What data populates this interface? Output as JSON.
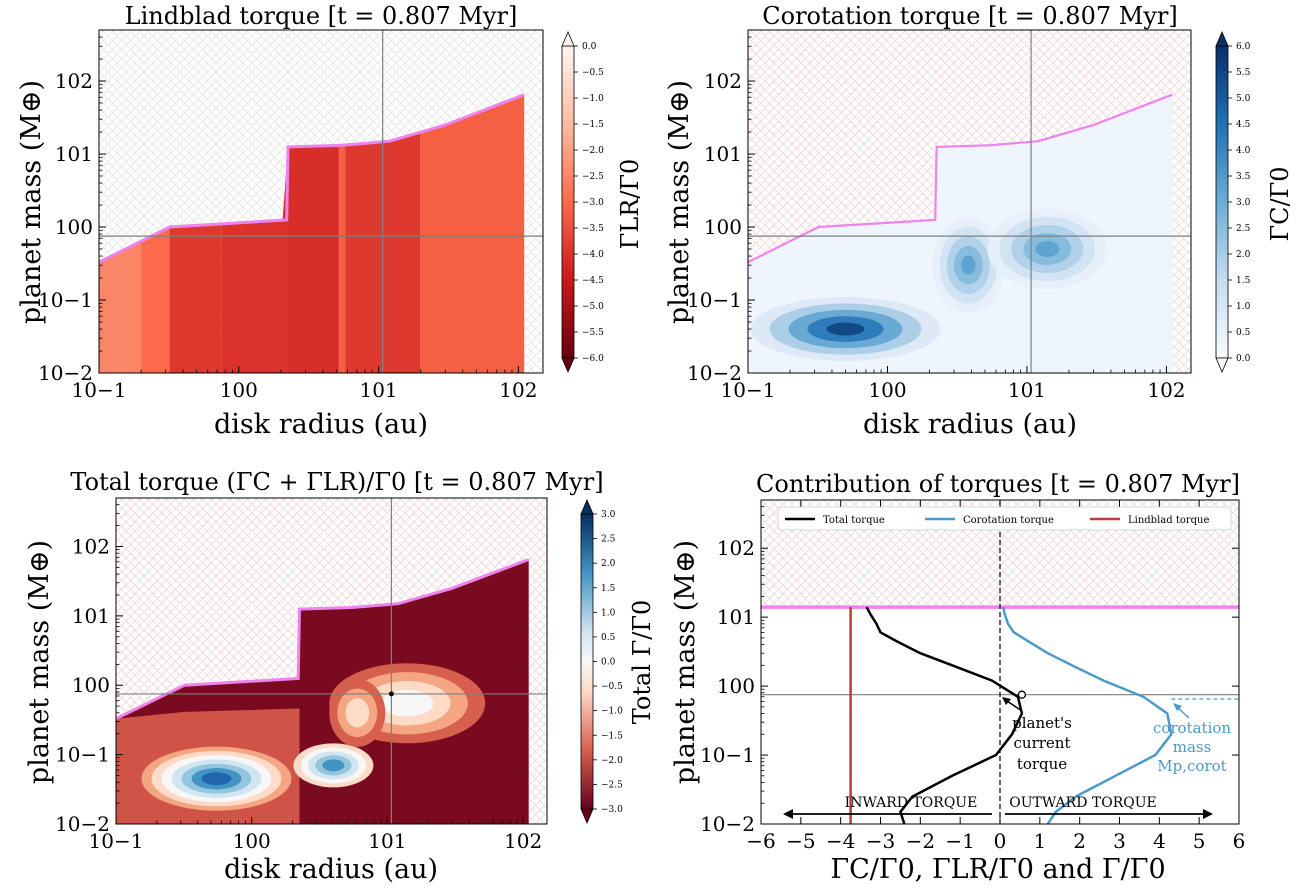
{
  "chart_data": [
    {
      "id": "lindblad",
      "type": "heatmap",
      "title": "Lindblad torque [t = 0.807 Myr]",
      "xlabel": "disk radius (au)",
      "ylabel": "planet mass (M⊕)",
      "xscale": "log",
      "yscale": "log",
      "xlim": [
        0.1,
        150
      ],
      "ylim": [
        0.01,
        500
      ],
      "xticks": [
        "10−1",
        "100",
        "101",
        "102"
      ],
      "yticks": [
        "10−2",
        "10−1",
        "100",
        "101",
        "102"
      ],
      "colorbar": {
        "label": "ΓLR/Γ0",
        "range": [
          -6.0,
          0.0
        ],
        "ticks": [
          "0.0",
          "−0.5",
          "−1.0",
          "−1.5",
          "−2.0",
          "−2.5",
          "−3.0",
          "−3.5",
          "−4.0",
          "−4.5",
          "−5.0",
          "−5.5",
          "−6.0"
        ],
        "colors": [
          "#67000d",
          "#cb181d",
          "#fb6a4a",
          "#fcbba1",
          "#fff5f0"
        ]
      },
      "mass_limit_curve": {
        "r": [
          0.1,
          0.32,
          2.2,
          2.25,
          5.5,
          12,
          30,
          110
        ],
        "m": [
          0.33,
          1.0,
          1.25,
          12.5,
          13.2,
          15,
          25,
          65
        ],
        "color": "#ee82ee"
      },
      "reference_lines": {
        "r": 10.7,
        "m": 0.75
      },
      "torque_bands": [
        {
          "r0": 0.1,
          "r1": 0.2,
          "value": -2.5
        },
        {
          "r0": 0.2,
          "r1": 0.32,
          "value": -3.0
        },
        {
          "r0": 0.32,
          "r1": 0.75,
          "value": -3.9
        },
        {
          "r0": 0.75,
          "r1": 2.25,
          "value": -4.0
        },
        {
          "r0": 2.25,
          "r1": 5.2,
          "value": -4.1
        },
        {
          "r0": 5.2,
          "r1": 5.8,
          "value": -3.2
        },
        {
          "r0": 5.8,
          "r1": 20,
          "value": -3.9
        },
        {
          "r0": 20,
          "r1": 110,
          "value": -3.2
        }
      ]
    },
    {
      "id": "corotation",
      "type": "heatmap",
      "title": "Corotation torque [t = 0.807 Myr]",
      "xlabel": "disk radius (au)",
      "ylabel": "planet mass (M⊕)",
      "xscale": "log",
      "yscale": "log",
      "xlim": [
        0.1,
        150
      ],
      "ylim": [
        0.01,
        500
      ],
      "xticks": [
        "10−1",
        "100",
        "101",
        "102"
      ],
      "yticks": [
        "10−2",
        "10−1",
        "100",
        "101",
        "102"
      ],
      "colorbar": {
        "label": "ΓC/Γ0",
        "range": [
          0.0,
          6.0
        ],
        "ticks": [
          "6.0",
          "5.5",
          "5.0",
          "4.5",
          "4.0",
          "3.5",
          "3.0",
          "2.5",
          "2.0",
          "1.5",
          "1.0",
          "0.5",
          "0.0"
        ],
        "colors": [
          "#f7fbff",
          "#c6dbef",
          "#6baed6",
          "#2171b5",
          "#08306b"
        ]
      },
      "mass_limit_curve": {
        "r": [
          0.1,
          0.32,
          2.2,
          2.25,
          5.5,
          12,
          30,
          110
        ],
        "m": [
          0.33,
          1.0,
          1.25,
          12.5,
          13.2,
          15,
          25,
          65
        ],
        "color": "#ee82ee"
      },
      "reference_lines": {
        "r": 10.7,
        "m": 0.75
      },
      "peaks": [
        {
          "r": 0.5,
          "m": 0.04,
          "value": 5.8
        },
        {
          "r": 3.8,
          "m": 0.3,
          "value": 3.5
        },
        {
          "r": 14,
          "m": 0.5,
          "value": 3.5
        }
      ]
    },
    {
      "id": "total",
      "type": "heatmap",
      "title": "Total torque (ΓC + ΓLR)/Γ0 [t = 0.807 Myr]",
      "xlabel": "disk radius (au)",
      "ylabel": "planet mass (M⊕)",
      "xscale": "log",
      "yscale": "log",
      "xlim": [
        0.1,
        150
      ],
      "ylim": [
        0.01,
        500
      ],
      "xticks": [
        "10−1",
        "100",
        "101",
        "102"
      ],
      "yticks": [
        "10−2",
        "10−1",
        "100",
        "101",
        "102"
      ],
      "colorbar": {
        "label": "Total Γ/Γ0",
        "range": [
          -3.0,
          3.0
        ],
        "ticks": [
          "3.0",
          "2.5",
          "2.0",
          "1.5",
          "1.0",
          "0.5",
          "0.0",
          "−0.5",
          "−1.0",
          "−1.5",
          "−2.0",
          "−2.5",
          "−3.0"
        ],
        "colors": [
          "#67001f",
          "#d6604d",
          "#fddbc7",
          "#f7f7f7",
          "#d1e5f0",
          "#4393c3",
          "#053061"
        ]
      },
      "mass_limit_curve": {
        "r": [
          0.1,
          0.32,
          2.2,
          2.25,
          5.5,
          12,
          30,
          110
        ],
        "m": [
          0.33,
          1.0,
          1.25,
          12.5,
          13.2,
          15,
          25,
          65
        ],
        "color": "#ee82ee"
      },
      "reference_lines": {
        "r": 10.7,
        "m": 0.75
      },
      "current_planet": {
        "r": 10.7,
        "m": 0.75
      }
    },
    {
      "id": "contribution",
      "type": "line",
      "title": "Contribution of torques [t = 0.807 Myr]",
      "xlabel": "ΓC/Γ0, ΓLR/Γ0 and Γ/Γ0",
      "ylabel": "planet mass (M⊕)",
      "yscale": "log",
      "xlim": [
        -6,
        6
      ],
      "ylim": [
        0.01,
        500
      ],
      "xticks": [
        -6,
        -5,
        -4,
        -3,
        -2,
        -1,
        0,
        1,
        2,
        3,
        4,
        5,
        6
      ],
      "xtick_labels": [
        "−6",
        "−5",
        "−4",
        "−3",
        "−2",
        "−1",
        "0",
        "1",
        "2",
        "3",
        "4",
        "5",
        "6"
      ],
      "yticks": [
        "10−2",
        "10−1",
        "100",
        "101",
        "102"
      ],
      "legend": {
        "position": "top",
        "entries": [
          "Total torque",
          "Corotation torque",
          "Lindblad torque"
        ]
      },
      "mass_limit": 14,
      "reference_mass": 0.75,
      "series": [
        {
          "name": "Total torque",
          "color": "#000000",
          "x": [
            -2.4,
            -2.5,
            -2.2,
            -1.2,
            -0.1,
            0.3,
            0.55,
            0.45,
            -0.2,
            -1.2,
            -2.0,
            -2.6,
            -3.0,
            -3.1,
            -3.25,
            -3.35
          ],
          "m": [
            0.01,
            0.015,
            0.025,
            0.05,
            0.1,
            0.2,
            0.4,
            0.7,
            1.2,
            2.0,
            3.0,
            4.5,
            6.0,
            8.0,
            11.0,
            14.0
          ]
        },
        {
          "name": "Corotation torque",
          "color": "#4b9bc9",
          "x": [
            1.2,
            1.4,
            1.9,
            2.9,
            3.9,
            4.3,
            4.2,
            3.6,
            2.6,
            1.8,
            1.2,
            0.7,
            0.35,
            0.2,
            0.12,
            0.08
          ],
          "m": [
            0.01,
            0.015,
            0.025,
            0.05,
            0.1,
            0.2,
            0.4,
            0.7,
            1.2,
            2.0,
            3.0,
            4.5,
            6.0,
            8.0,
            11.0,
            14.0
          ]
        },
        {
          "name": "Lindblad torque",
          "color": "#c0393b",
          "x": [
            -3.75,
            -3.75
          ],
          "m": [
            0.01,
            14.0
          ]
        }
      ],
      "annotations": {
        "current_torque": {
          "lines": [
            "planet's",
            "current",
            "torque"
          ],
          "x": 0.55,
          "m": 0.75
        },
        "corotation_mass": {
          "lines": [
            "corotation",
            "mass",
            "Mp,corot"
          ],
          "x": 4.3,
          "m": 0.65,
          "color": "#4b9bc9"
        },
        "inward_label": "INWARD TORQUE",
        "outward_label": "OUTWARD TORQUE"
      }
    }
  ]
}
